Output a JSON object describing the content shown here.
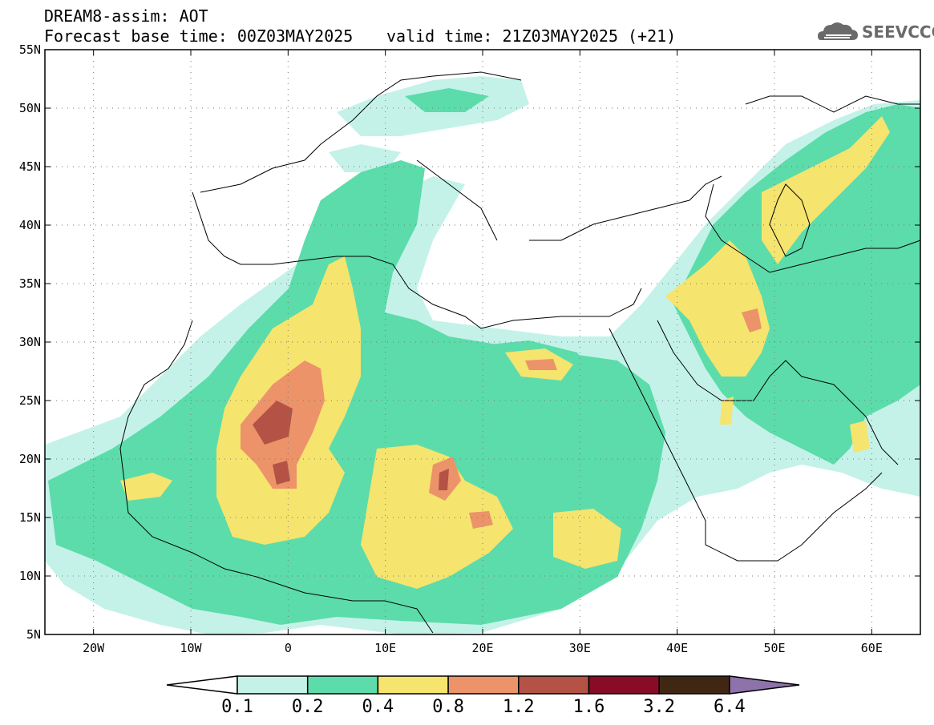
{
  "header": {
    "title": "DREAM8-assim: AOT",
    "base_time": "Forecast base time: 00Z03MAY2025",
    "valid_time": "valid time: 21Z03MAY2025 (+21)",
    "logo_text": "SEEVCCC"
  },
  "axes": {
    "lat_labels": [
      "55N",
      "50N",
      "45N",
      "40N",
      "35N",
      "30N",
      "25N",
      "20N",
      "15N",
      "10N",
      "5N"
    ],
    "lat_values": [
      55,
      50,
      45,
      40,
      35,
      30,
      25,
      20,
      15,
      10,
      5
    ],
    "lon_labels": [
      "20W",
      "10W",
      "0",
      "10E",
      "20E",
      "30E",
      "40E",
      "50E",
      "60E"
    ],
    "lon_values": [
      -20,
      -10,
      0,
      10,
      20,
      30,
      40,
      50,
      60
    ],
    "lon_range": [
      -25,
      65
    ],
    "lat_range": [
      5,
      55
    ],
    "grid": "dotted"
  },
  "colorbar": {
    "levels": [
      "0.1",
      "0.2",
      "0.4",
      "0.8",
      "1.2",
      "1.6",
      "3.2",
      "6.4"
    ],
    "colors": [
      "#c4f2e9",
      "#5cdcaa",
      "#f5e46e",
      "#ec936a",
      "#b45246",
      "#880c26",
      "#402714"
    ],
    "over_color": "#8d72ab",
    "under_color": "#ffffff"
  }
}
